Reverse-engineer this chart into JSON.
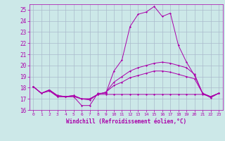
{
  "xlabel": "Windchill (Refroidissement éolien,°C)",
  "background_color": "#cce8e8",
  "grid_color": "#aabbcc",
  "line_color": "#aa00aa",
  "x": [
    0,
    1,
    2,
    3,
    4,
    5,
    6,
    7,
    8,
    9,
    10,
    11,
    12,
    13,
    14,
    15,
    16,
    17,
    18,
    19,
    20,
    21,
    22,
    23
  ],
  "series1": [
    18.1,
    17.5,
    17.8,
    17.2,
    17.2,
    17.2,
    16.4,
    16.4,
    17.5,
    17.5,
    19.5,
    20.5,
    23.5,
    24.6,
    24.8,
    25.3,
    24.4,
    24.7,
    21.8,
    20.3,
    19.1,
    17.5,
    17.1,
    17.5
  ],
  "series2": [
    18.1,
    17.5,
    17.8,
    17.3,
    17.2,
    17.3,
    17.0,
    17.0,
    17.4,
    17.6,
    18.5,
    19.0,
    19.5,
    19.8,
    20.0,
    20.2,
    20.3,
    20.2,
    20.0,
    19.8,
    19.2,
    17.5,
    17.2,
    17.5
  ],
  "series3": [
    18.1,
    17.5,
    17.8,
    17.3,
    17.2,
    17.3,
    17.0,
    17.0,
    17.4,
    17.6,
    18.2,
    18.5,
    18.9,
    19.1,
    19.3,
    19.5,
    19.5,
    19.4,
    19.2,
    19.0,
    18.8,
    17.5,
    17.2,
    17.5
  ],
  "series4": [
    18.1,
    17.5,
    17.7,
    17.2,
    17.2,
    17.2,
    17.0,
    16.9,
    17.4,
    17.4,
    17.4,
    17.4,
    17.4,
    17.4,
    17.4,
    17.4,
    17.4,
    17.4,
    17.4,
    17.4,
    17.4,
    17.4,
    17.2,
    17.5
  ],
  "ylim": [
    16,
    25.5
  ],
  "yticks": [
    16,
    17,
    18,
    19,
    20,
    21,
    22,
    23,
    24,
    25
  ],
  "xlim": [
    -0.5,
    23.5
  ],
  "xticks": [
    0,
    1,
    2,
    3,
    4,
    5,
    6,
    7,
    8,
    9,
    10,
    11,
    12,
    13,
    14,
    15,
    16,
    17,
    18,
    19,
    20,
    21,
    22,
    23
  ]
}
